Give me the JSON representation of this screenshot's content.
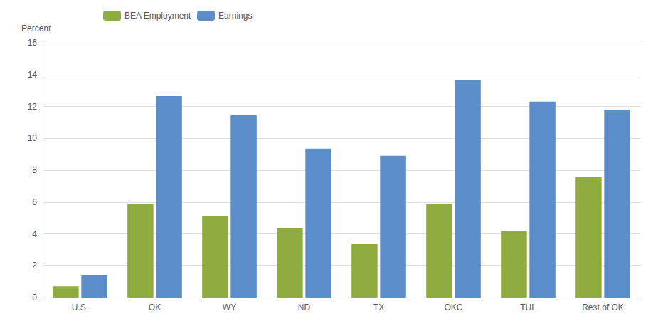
{
  "chart_data": {
    "type": "bar",
    "ylabel": "Percent",
    "categories": [
      "U.S.",
      "OK",
      "WY",
      "ND",
      "TX",
      "OKC",
      "TUL",
      "Rest of OK"
    ],
    "series": [
      {
        "name": "BEA Employment",
        "color": "#8fad3f",
        "values": [
          0.7,
          5.9,
          5.1,
          4.35,
          3.35,
          5.85,
          4.2,
          7.55
        ]
      },
      {
        "name": "Earnings",
        "color": "#5b8dc8",
        "values": [
          1.4,
          12.65,
          11.45,
          9.35,
          8.9,
          13.65,
          12.3,
          11.8
        ]
      }
    ],
    "ylim": [
      0,
      16
    ],
    "yticks": [
      0,
      2,
      4,
      6,
      8,
      10,
      12,
      14,
      16
    ],
    "grid": true,
    "legend": "upper left"
  }
}
